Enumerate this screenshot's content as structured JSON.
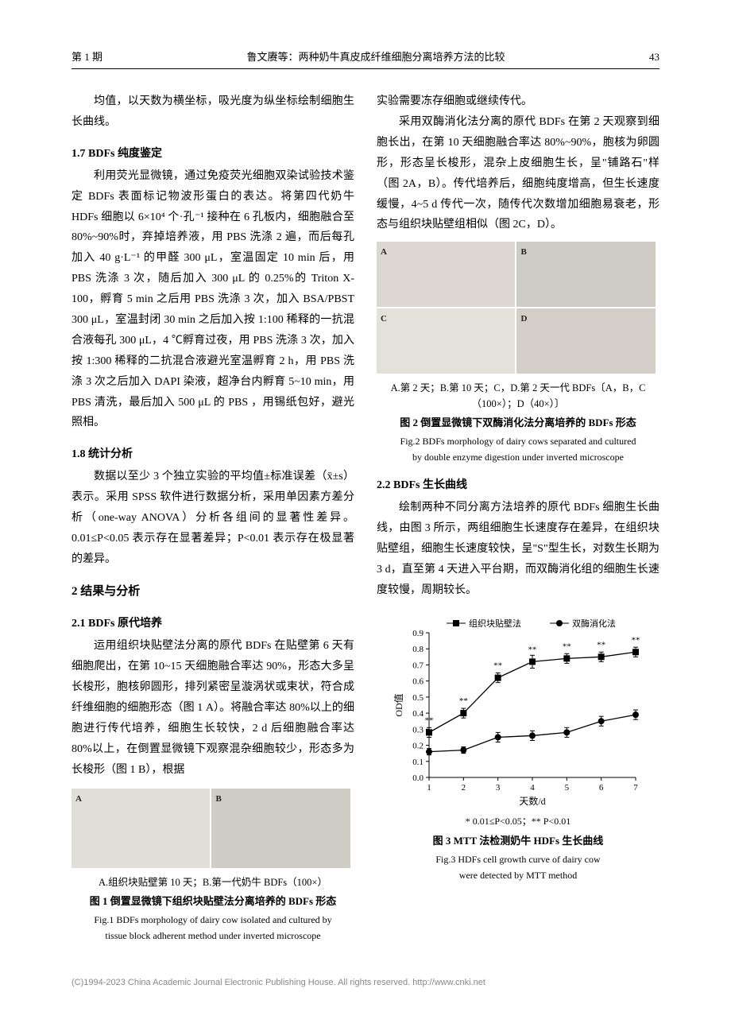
{
  "header": {
    "issue": "第 1 期",
    "running_title": "鲁文赓等：两种奶牛真皮成纤维细胞分离培养方法的比较",
    "page": "43"
  },
  "left": {
    "p_intro": "均值，以天数为横坐标，吸光度为纵坐标绘制细胞生长曲线。",
    "s17_title": "1.7  BDFs 纯度鉴定",
    "s17_p": "利用荧光显微镜，通过免疫荧光细胞双染试验技术鉴定 BDFs 表面标记物波形蛋白的表达。将第四代奶牛 HDFs 细胞以 6×10⁴ 个·孔⁻¹ 接种在 6 孔板内，细胞融合至 80%~90%时，弃掉培养液，用 PBS 洗涤 2 遍，而后每孔加入 40 g·L⁻¹ 的甲醛 300 μL，室温固定 10 min 后，用 PBS 洗涤 3 次，随后加入 300 μL 的 0.25%的 Triton X-100，孵育 5 min 之后用 PBS 洗涤 3 次，加入 BSA/PBST 300 μL，室温封闭 30 min 之后加入按 1:100 稀释的一抗混合液每孔 300 μL，4 ℃孵育过夜，用 PBS 洗涤 3 次，加入按 1:300 稀释的二抗混合液避光室温孵育 2 h，用 PBS 洗涤 3 次之后加入 DAPI 染液，超净台内孵育 5~10 min，用 PBS 清洗，最后加入 500 μL 的 PBS ，用锡纸包好，避光照相。",
    "s18_title": "1.8  统计分析",
    "s18_p": "数据以至少 3 个独立实验的平均值±标准误差（x̄±s）表示。采用 SPSS 软件进行数据分析，采用单因素方差分析（one-way ANOVA）分析各组间的显著性差异。0.01≤P<0.05 表示存在显著差异；P<0.01 表示存在极显著的差异。",
    "s2_title": "2  结果与分析",
    "s21_title": "2.1  BDFs 原代培养",
    "s21_p": "运用组织块贴壁法分离的原代 BDFs 在贴壁第 6 天有细胞爬出，在第 10~15 天细胞融合率达 90%，形态大多呈长梭形，胞核卵圆形，排列紧密呈漩涡状或束状，符合成纤维细胞的细胞形态（图 1 A）。将融合率达 80%以上的细胞进行传代培养，细胞生长较快，2 d 后细胞融合率达 80%以上，在倒置显微镜下观察混杂细胞较少，形态多为长梭形（图 1 B），根据",
    "fig1_cap": "A.组织块贴壁第 10 天；B.第一代奶牛 BDFs（100×）",
    "fig1_title_cn": "图 1  倒置显微镜下组织块贴壁法分离培养的 BDFs 形态",
    "fig1_title_en1": "Fig.1  BDFs morphology of dairy cow isolated and cultured by",
    "fig1_title_en2": "tissue block adherent method under inverted microscope"
  },
  "right": {
    "p_cont": "实验需要冻存细胞或继续传代。",
    "p_enzyme": "采用双酶消化法分离的原代 BDFs 在第 2 天观察到细胞长出，在第 10 天细胞融合率达 80%~90%，胞核为卵圆形，形态呈长梭形，混杂上皮细胞生长，呈\"铺路石\"样（图 2A，B）。传代培养后，细胞纯度增高，但生长速度缓慢，4~5 d 传代一次，随传代次数增加细胞易衰老，形态与组织块贴壁组相似（图 2C，D）。",
    "fig2_cap": "A.第 2 天；B.第 10 天；C，D.第 2 天一代 BDFs〔A，B，C（100×）；D（40×）〕",
    "fig2_title_cn": "图 2  倒置显微镜下双酶消化法分离培养的 BDFs 形态",
    "fig2_title_en1": "Fig.2  BDFs morphology of dairy cows separated and cultured",
    "fig2_title_en2": "by double enzyme digestion under inverted microscope",
    "s22_title": "2.2  BDFs 生长曲线",
    "s22_p": "绘制两种不同分离方法培养的原代 BDFs 细胞生长曲线，由图 3 所示，两组细胞生长速度存在差异，在组织块贴壁组，细胞生长速度较快，呈\"S\"型生长，对数生长期为 3 d，直至第 4 天进入平台期，而双酶消化组的细胞生长速度较慢，周期较长。",
    "chart": {
      "type": "line",
      "legend": [
        "组织块贴壁法",
        "双酶消化法"
      ],
      "x_label": "天数/d",
      "y_label": "OD值",
      "x": [
        1,
        2,
        3,
        4,
        5,
        6,
        7
      ],
      "series_a": [
        0.28,
        0.4,
        0.62,
        0.72,
        0.74,
        0.75,
        0.78
      ],
      "series_b": [
        0.16,
        0.17,
        0.25,
        0.26,
        0.28,
        0.35,
        0.39
      ],
      "err_a": [
        0.03,
        0.03,
        0.03,
        0.04,
        0.03,
        0.03,
        0.03
      ],
      "err_b": [
        0.02,
        0.02,
        0.03,
        0.03,
        0.03,
        0.03,
        0.03
      ],
      "sig": [
        "**",
        "**",
        "**",
        "**",
        "**",
        "**",
        "**"
      ],
      "ylim": [
        0,
        0.9
      ],
      "ytick_step": 0.1,
      "marker_a": "square",
      "marker_b": "circle",
      "line_color": "#000000",
      "background": "#ffffff"
    },
    "chart_note": "* 0.01≤P<0.05；** P<0.01",
    "fig3_title_cn": "图 3  MTT 法检测奶牛 HDFs 生长曲线",
    "fig3_title_en1": "Fig.3  HDFs cell growth curve of dairy cow",
    "fig3_title_en2": "were detected by MTT method"
  },
  "footer": "(C)1994-2023 China Academic Journal Electronic Publishing House. All rights reserved.   http://www.cnki.net",
  "colors": {
    "text": "#000000",
    "panel_bg": "#d8d4cf",
    "footer": "#888888"
  }
}
